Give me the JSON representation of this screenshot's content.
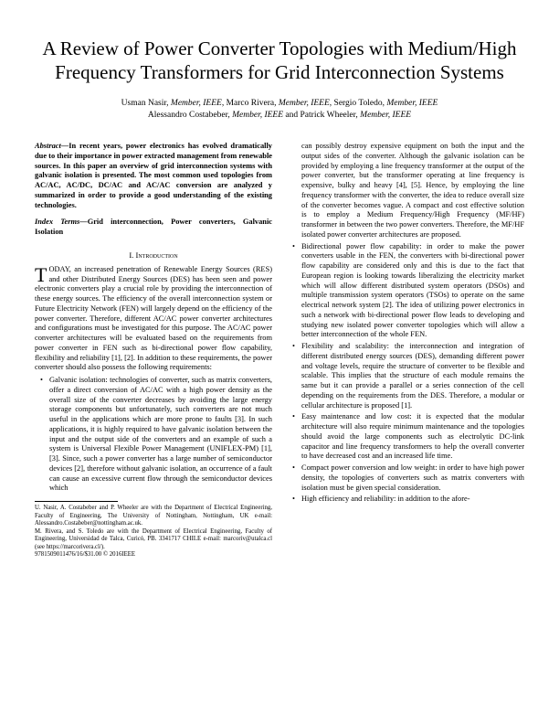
{
  "title": "A Review of Power Converter Topologies with Medium/High Frequency Transformers for Grid Interconnection Systems",
  "authors_line1_parts": [
    {
      "name": "Usman Nasir",
      "aff": "Member, IEEE"
    },
    {
      "name": "Marco Rivera",
      "aff": "Member, IEEE"
    },
    {
      "name": "Sergio Toledo",
      "aff": "Member, IEEE"
    }
  ],
  "authors_line2_parts": [
    {
      "name": "Alessandro Costabeber",
      "aff": "Member, IEEE"
    },
    {
      "name": "Patrick Wheeler",
      "aff": "Member, IEEE"
    }
  ],
  "authors_joiner": " and ",
  "abstract_label": "Abstract—",
  "abstract_text": "In recent years, power electronics has evolved dramatically due to their importance in power extracted management from renewable sources. In this paper an overview of grid interconnection systems with galvanic isolation is presented. The most common used topologies from AC/AC, AC/DC, DC/AC and AC/AC conversion are analyzed y summarized in order to provide a good understanding of the existing technologies.",
  "index_label": "Index Terms—",
  "index_text": "Grid interconnection, Power converters, Galvanic Isolation",
  "section1": "I.  Introduction",
  "dropcap": "T",
  "intro_rest": "ODAY, an increased penetration of Renewable Energy Sources (RES) and other Distributed Energy Sources (DES) has been seen and power electronic converters play a crucial role by providing the interconnection of these energy sources. The efficiency of the overall interconnection system or Future Electricity Network (FEN) will largely depend on the efficiency of the power converter. Therefore, different AC/AC power converter architectures and configurations must be investigated for this purpose. The AC/AC power converter architectures will be evaluated based on the requirements from power converter in FEN such as bi-directional power flow capability, flexibility and reliability [1], [2]. In addition to these requirements, the power converter should also possess the following requirements:",
  "left_bullet_1_a": "Galvanic isolation: technologies of converter, such as matrix converters, offer a direct conversion of AC/AC with a high power density as the overall size of the converter decreases by avoiding the large energy storage components but unfortunately, such converters are not much useful in the applications which are more prone to faults [3]. In such applications, it is highly required to have galvanic isolation between the input and the output side of the converters and an example of such a system is Universal Flexible Power Management (UNIFLEX-PM) [1], [3]. Since, such a power converter has a large number of semiconductor devices [2], therefore without galvanic isolation, an occurrence of a fault can cause an excessive current flow through the semiconductor devices which",
  "footnote1": "U. Nasir, A. Costabeber and P. Wheeler are with the Department of Electrical Engineering, Faculty of Engineering, The University of Nottingham, Nottingham, UK e-mail: Alessandro.Costabeber@nottingham.ac.uk.",
  "footnote2": "M. Rivera, and S. Toledo are with the Department of Electrical Engineering, Faculty of Engineering, Universidad de Talca, Curicó, PB. 3341717 CHILE e-mail: marcoriv@utalca.cl (see https://marcorivera.cl/).",
  "footnote3": "9781509011476/16/$31.00 © 2016IEEE",
  "right_cont": "can possibly destroy expensive equipment on both the input and the output sides of the converter. Although the galvanic isolation can be provided by employing a line frequency transformer at the output of the power converter, but the transformer operating at line frequency is expensive, bulky and heavy [4], [5]. Hence, by employing the line frequency transformer with the converter, the idea to reduce overall size of the converter becomes vague. A compact and cost effective solution is to employ a Medium Frequency/High Frequency (MF/HF) transformer in between the two power converters. Therefore, the MF/HF isolated power converter architectures are proposed.",
  "right_b2": "Bidirectional power flow capability: in order to make the power converters usable in the FEN, the converters with bi-directional power flow capability are considered only and this is due to the fact that European region is looking towards liberalizing the electricity market which will allow different distributed system operators (DSOs) and multiple transmission system operators (TSOs) to operate on the same electrical network system [2]. The idea of utilizing power electronics in such a network with bi-directional power flow leads to developing and studying new isolated power converter topologies which will allow a better interconnection of the whole FEN.",
  "right_b3": "Flexibility and scalability: the interconnection and integration of different distributed energy sources (DES), demanding different power and voltage levels, require the structure of converter to be flexible and scalable. This implies that the structure of each module remains the same but it can provide a parallel or a series connection of the cell depending on the requirements from the DES. Therefore, a modular or cellular architecture is proposed [1].",
  "right_b4": "Easy maintenance and low cost: it is expected that the modular architecture will also require minimum maintenance and the topologies should avoid the large components such as electrolytic DC-link capacitor and line frequency transformers to help the overall converter to have decreased cost and an increased life time.",
  "right_b5": "Compact power conversion and low weight: in order to have high power density, the topologies of converters such as matrix converters with isolation must be given special consideration.",
  "right_b6": "High efficiency and reliability: in addition to the afore-"
}
